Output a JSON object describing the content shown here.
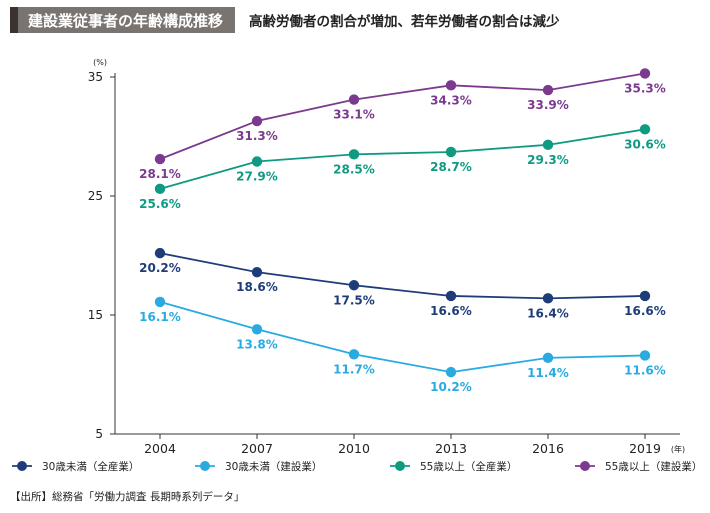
{
  "header": {
    "title": "建設業従事者の年齢構成推移",
    "subtitle": "高齢労働者の割合が増加、若年労働者の割合は減少"
  },
  "chart_data": {
    "type": "line",
    "title": "建設業従事者の年齢構成推移",
    "subtitle": "高齢労働者の割合が増加、若年労働者の割合は減少",
    "y_unit_label": "(%)",
    "x_unit_label": "(年)",
    "ylim": [
      5,
      35
    ],
    "yticks": [
      5,
      15,
      25,
      35
    ],
    "x": [
      "2004",
      "2007",
      "2010",
      "2013",
      "2016",
      "2019"
    ],
    "series": [
      {
        "name": "30歳未満（全産業）",
        "color": "#1f3c7a",
        "label_pos": "below",
        "values": [
          20.2,
          18.6,
          17.5,
          16.6,
          16.4,
          16.6
        ],
        "labels": [
          "20.2%",
          "18.6%",
          "17.5%",
          "16.6%",
          "16.4%",
          "16.6%"
        ]
      },
      {
        "name": "30歳未満（建設業）",
        "color": "#29abe2",
        "label_pos": "below",
        "values": [
          16.1,
          13.8,
          11.7,
          10.2,
          11.4,
          11.6
        ],
        "labels": [
          "16.1%",
          "13.8%",
          "11.7%",
          "10.2%",
          "11.4%",
          "11.6%"
        ]
      },
      {
        "name": "55歳以上（全産業）",
        "color": "#0f9a82",
        "label_pos": "below",
        "values": [
          25.6,
          27.9,
          28.5,
          28.7,
          29.3,
          30.6
        ],
        "labels": [
          "25.6%",
          "27.9%",
          "28.5%",
          "28.7%",
          "29.3%",
          "30.6%"
        ]
      },
      {
        "name": "55歳以上（建設業）",
        "color": "#7b3a8f",
        "label_pos": "below",
        "values": [
          28.1,
          31.3,
          33.1,
          34.3,
          33.9,
          35.3
        ],
        "labels": [
          "28.1%",
          "31.3%",
          "33.1%",
          "34.3%",
          "33.9%",
          "35.3%"
        ]
      }
    ],
    "legend_position": "bottom",
    "grid": false
  },
  "source": "【出所】総務省「労働力調査 長期時系列データ」"
}
